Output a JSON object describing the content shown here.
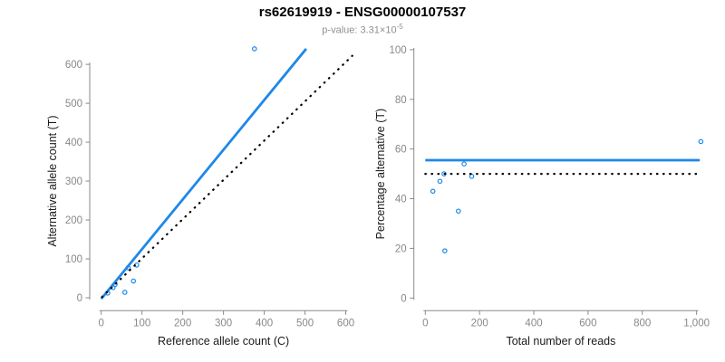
{
  "header": {
    "title": "rs62619919 - ENSG00000107537",
    "pvalue_label": "p-value: ",
    "pvalue_base": "3.31×10",
    "pvalue_exponent": "-5"
  },
  "colors": {
    "accent_blue": "#1E88E8",
    "dotted_black": "#000000",
    "axis_gray": "#8a8a8a",
    "tick_label_gray": "#888888",
    "axis_title_color": "#1a1a1a",
    "subtitle_gray": "#8f8f8f"
  },
  "chart_data": [
    {
      "id": "allele-counts",
      "type": "scatter",
      "xlabel": "Reference allele count (C)",
      "ylabel": "Alternative allele count (T)",
      "xlim": [
        0,
        620
      ],
      "ylim": [
        0,
        645
      ],
      "xticks": [
        0,
        100,
        200,
        300,
        400,
        500,
        600
      ],
      "xtick_labels": [
        "0",
        "100",
        "200",
        "300",
        "400",
        "500",
        "600"
      ],
      "yticks": [
        0,
        100,
        200,
        300,
        400,
        500,
        600
      ],
      "ytick_labels": [
        "0",
        "100",
        "200",
        "300",
        "400",
        "500",
        "600"
      ],
      "grid": false,
      "points": [
        [
          16,
          12
        ],
        [
          29,
          26
        ],
        [
          34,
          34
        ],
        [
          58,
          14
        ],
        [
          79,
          43
        ],
        [
          66,
          77
        ],
        [
          87,
          84
        ],
        [
          376,
          640
        ]
      ],
      "lines": [
        {
          "name": "fitted-ratio-line",
          "style": "solid",
          "color": "#1E88E8",
          "x1": 0,
          "y1": -3,
          "x2": 503,
          "y2": 640
        },
        {
          "name": "identity-line",
          "style": "dotted",
          "color": "#000000",
          "x1": 2,
          "y1": 2,
          "x2": 616,
          "y2": 622
        }
      ]
    },
    {
      "id": "percentage-vs-reads",
      "type": "scatter",
      "xlabel": "Total number of reads",
      "ylabel": "Percentage alternative (T)",
      "xlim": [
        0,
        1020
      ],
      "ylim": [
        0,
        100
      ],
      "xticks": [
        0,
        200,
        400,
        600,
        800,
        1000
      ],
      "xtick_labels": [
        "0",
        "200",
        "400",
        "600",
        "800",
        "1,000"
      ],
      "yticks": [
        0,
        20,
        40,
        60,
        80,
        100
      ],
      "ytick_labels": [
        "0",
        "20",
        "40",
        "60",
        "80",
        "100"
      ],
      "grid": false,
      "points": [
        [
          28,
          43
        ],
        [
          54,
          47
        ],
        [
          69,
          50
        ],
        [
          72,
          19
        ],
        [
          122,
          35
        ],
        [
          143,
          54
        ],
        [
          171,
          49
        ],
        [
          1016,
          63
        ]
      ],
      "lines": [
        {
          "name": "mean-percentage-line",
          "style": "solid",
          "color": "#1E88E8",
          "x1": 0,
          "y1": 55.5,
          "x2": 1012,
          "y2": 55.5
        },
        {
          "name": "expected-50-percent-line",
          "style": "dotted",
          "color": "#000000",
          "x1": 0,
          "y1": 50,
          "x2": 1012,
          "y2": 50
        }
      ]
    }
  ]
}
